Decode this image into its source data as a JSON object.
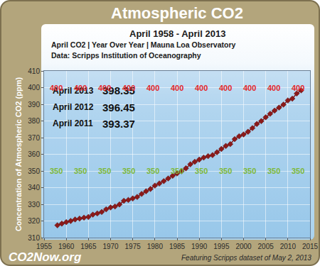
{
  "chart_data": {
    "type": "line",
    "title": "Atmospheric CO2",
    "subtitle": [
      "April 1958 - April 2013",
      "April CO2 | Year Over Year | Mauna Loa Observatory",
      "Data: Scripps Institution of Oceanography"
    ],
    "y_label": "Concentration of Atmospheric CO2 (ppm)",
    "x": [
      1958,
      1959,
      1960,
      1961,
      1962,
      1963,
      1964,
      1965,
      1966,
      1967,
      1968,
      1969,
      1970,
      1971,
      1972,
      1973,
      1974,
      1975,
      1976,
      1977,
      1978,
      1979,
      1980,
      1981,
      1982,
      1983,
      1984,
      1985,
      1986,
      1987,
      1988,
      1989,
      1990,
      1991,
      1992,
      1993,
      1994,
      1995,
      1996,
      1997,
      1998,
      1999,
      2000,
      2001,
      2002,
      2003,
      2004,
      2005,
      2006,
      2007,
      2008,
      2009,
      2010,
      2011,
      2012,
      2013
    ],
    "values": [
      317.4,
      318.4,
      319.3,
      320.0,
      320.9,
      321.4,
      322.0,
      322.4,
      323.8,
      324.5,
      325.4,
      327.0,
      328.1,
      328.7,
      329.9,
      332.1,
      332.6,
      333.5,
      334.4,
      336.2,
      337.8,
      339.2,
      341.2,
      342.5,
      343.9,
      345.5,
      347.1,
      348.5,
      349.8,
      351.6,
      354.0,
      355.5,
      356.8,
      358.0,
      358.9,
      359.5,
      361.2,
      363.2,
      365.0,
      366.1,
      369.1,
      370.8,
      371.9,
      373.5,
      375.7,
      378.2,
      379.9,
      382.2,
      384.3,
      386.2,
      388.0,
      389.8,
      392.3,
      393.37,
      396.45,
      398.35
    ],
    "color": "#8b1a1a",
    "marker": "diamond",
    "line_style": "solid",
    "xlim": [
      1955,
      2015
    ],
    "xticks": [
      1955,
      1960,
      1965,
      1970,
      1975,
      1980,
      1985,
      1990,
      1995,
      2000,
      2005,
      2010,
      2015
    ],
    "ylim": [
      310,
      410
    ],
    "yticks": [
      310,
      320,
      330,
      340,
      350,
      360,
      370,
      380,
      390,
      400,
      410
    ],
    "grid": true,
    "annotations": [
      {
        "label": "April 2013",
        "value": 398.35
      },
      {
        "label": "April 2012",
        "value": 396.45
      },
      {
        "label": "April 2011",
        "value": 393.37
      }
    ],
    "reference_lines": [
      {
        "value": 400,
        "color": "#e3262a"
      },
      {
        "value": 350,
        "color": "#7db83a"
      }
    ],
    "footer": {
      "site": "CO2Now.org",
      "note": "Featuring Scripps dataset of May 2, 2013"
    }
  }
}
